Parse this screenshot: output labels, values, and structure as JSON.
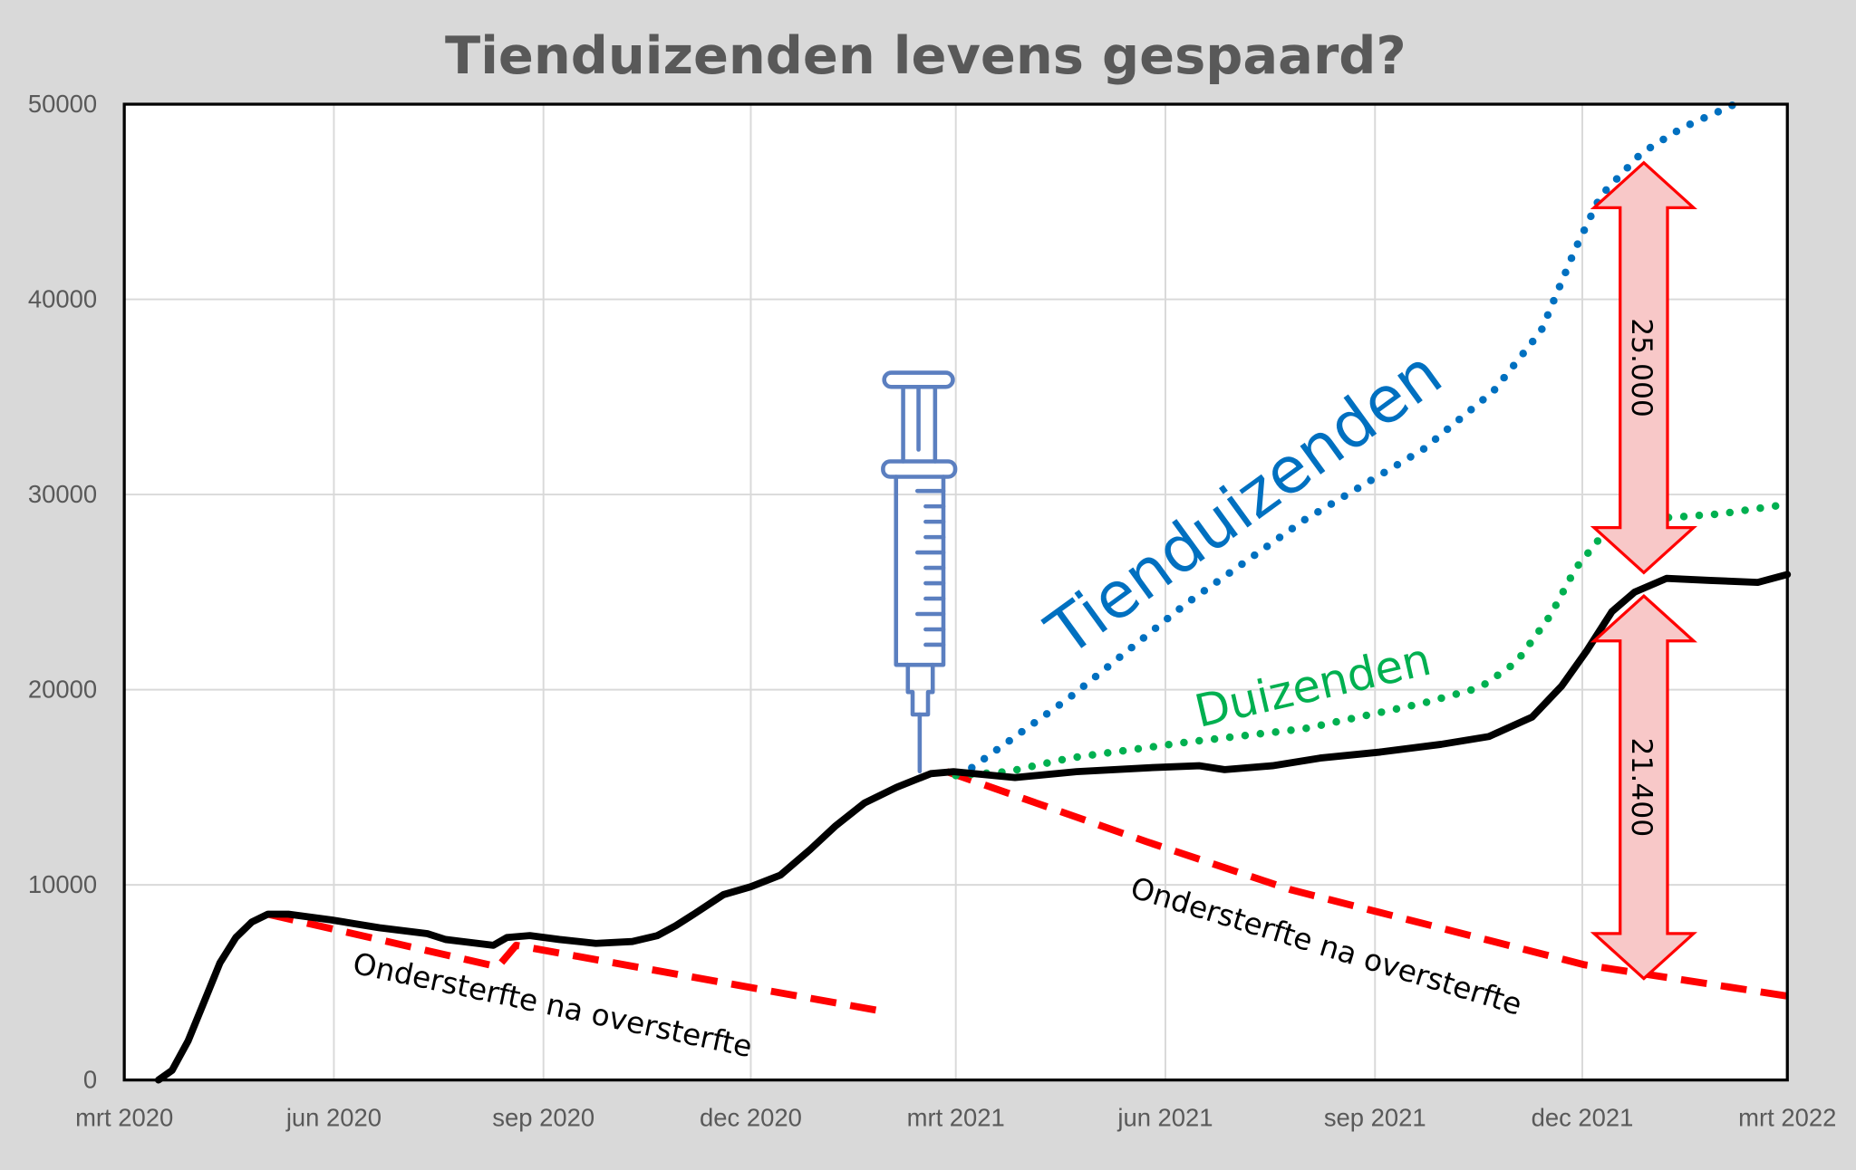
{
  "chart_data": {
    "type": "line",
    "title": "Tienduizenden levens gespaard?",
    "xlabel": "",
    "ylabel": "",
    "xlim": [
      "2020-03-01",
      "2022-03-01"
    ],
    "ylim": [
      0,
      50000
    ],
    "grid": true,
    "legend": "none",
    "x_ticks": [
      "mrt 2020",
      "jun 2020",
      "sep 2020",
      "dec 2020",
      "mrt 2021",
      "jun 2021",
      "sep 2021",
      "dec 2021",
      "mrt 2022"
    ],
    "x_tick_dates": [
      "2020-03-01",
      "2020-06-01",
      "2020-09-01",
      "2020-12-01",
      "2021-03-01",
      "2021-06-01",
      "2021-09-01",
      "2021-12-01",
      "2022-03-01"
    ],
    "y_ticks": [
      "0",
      "10000",
      "20000",
      "30000",
      "40000",
      "50000"
    ],
    "y_tick_values": [
      0,
      10000,
      20000,
      30000,
      40000,
      50000
    ],
    "series": [
      {
        "style": "solid",
        "color": "#000000",
        "points": [
          [
            "2020-03-16",
            0
          ],
          [
            "2020-03-22",
            500
          ],
          [
            "2020-03-29",
            2000
          ],
          [
            "2020-04-05",
            4000
          ],
          [
            "2020-04-12",
            6000
          ],
          [
            "2020-04-19",
            7300
          ],
          [
            "2020-04-26",
            8100
          ],
          [
            "2020-05-03",
            8500
          ],
          [
            "2020-05-12",
            8500
          ],
          [
            "2020-05-31",
            8200
          ],
          [
            "2020-06-21",
            7800
          ],
          [
            "2020-07-12",
            7500
          ],
          [
            "2020-07-20",
            7200
          ],
          [
            "2020-08-10",
            6900
          ],
          [
            "2020-08-16",
            7300
          ],
          [
            "2020-08-26",
            7400
          ],
          [
            "2020-09-08",
            7200
          ],
          [
            "2020-09-24",
            7000
          ],
          [
            "2020-10-10",
            7100
          ],
          [
            "2020-10-21",
            7400
          ],
          [
            "2020-10-29",
            7900
          ],
          [
            "2020-11-06",
            8500
          ],
          [
            "2020-11-19",
            9500
          ],
          [
            "2020-12-01",
            9900
          ],
          [
            "2020-12-14",
            10500
          ],
          [
            "2020-12-27",
            11800
          ],
          [
            "2021-01-07",
            13000
          ],
          [
            "2021-01-20",
            14200
          ],
          [
            "2021-02-03",
            15000
          ],
          [
            "2021-02-18",
            15700
          ],
          [
            "2021-02-28",
            15800
          ],
          [
            "2021-03-27",
            15500
          ],
          [
            "2021-04-23",
            15800
          ],
          [
            "2021-05-25",
            16000
          ],
          [
            "2021-06-16",
            16100
          ],
          [
            "2021-06-27",
            15900
          ],
          [
            "2021-07-18",
            16100
          ],
          [
            "2021-08-08",
            16500
          ],
          [
            "2021-09-03",
            16800
          ],
          [
            "2021-09-30",
            17200
          ],
          [
            "2021-10-21",
            17600
          ],
          [
            "2021-11-09",
            18600
          ],
          [
            "2021-11-22",
            20200
          ],
          [
            "2021-12-03",
            22000
          ],
          [
            "2021-12-14",
            24000
          ],
          [
            "2021-12-24",
            25000
          ],
          [
            "2022-01-07",
            25700
          ],
          [
            "2022-01-26",
            25600
          ],
          [
            "2022-02-16",
            25500
          ],
          [
            "2022-03-01",
            25900
          ]
        ]
      },
      {
        "style": "dashed",
        "color": "#ff0000",
        "points": [
          [
            "2020-05-03",
            8500
          ],
          [
            "2020-08-12",
            5800
          ],
          [
            "2020-08-20",
            6900
          ],
          [
            "2021-01-29",
            3500
          ]
        ]
      },
      {
        "style": "dashed",
        "color": "#ff0000",
        "points": [
          [
            "2021-02-25",
            15800
          ],
          [
            "2021-05-24",
            12200
          ],
          [
            "2021-07-26",
            9750
          ],
          [
            "2021-09-26",
            7900
          ],
          [
            "2021-12-02",
            5900
          ],
          [
            "2022-03-01",
            4300
          ]
        ]
      },
      {
        "style": "dotted",
        "color": "#0070c0",
        "points": [
          [
            "2021-03-08",
            16000
          ],
          [
            "2021-04-20",
            19600
          ],
          [
            "2021-06-10",
            24400
          ],
          [
            "2021-08-01",
            28700
          ],
          [
            "2021-09-22",
            32300
          ],
          [
            "2021-10-23",
            35300
          ],
          [
            "2021-11-13",
            38400
          ],
          [
            "2021-11-28",
            42600
          ],
          [
            "2021-12-09",
            45300
          ],
          [
            "2021-12-27",
            47500
          ],
          [
            "2022-01-14",
            48800
          ],
          [
            "2022-02-06",
            50000
          ]
        ]
      },
      {
        "style": "dotted",
        "color": "#00b050",
        "points": [
          [
            "2021-03-01",
            15600
          ],
          [
            "2021-03-24",
            15800
          ],
          [
            "2021-04-20",
            16500
          ],
          [
            "2021-06-10",
            17300
          ],
          [
            "2021-08-01",
            18000
          ],
          [
            "2021-09-22",
            19300
          ],
          [
            "2021-10-17",
            20100
          ],
          [
            "2021-11-02",
            21400
          ],
          [
            "2021-11-17",
            23800
          ],
          [
            "2021-11-28",
            26200
          ],
          [
            "2021-12-09",
            27800
          ],
          [
            "2021-12-24",
            28700
          ],
          [
            "2022-01-30",
            29000
          ],
          [
            "2022-03-01",
            29500
          ]
        ]
      }
    ],
    "annotations": {
      "tienduizenden": {
        "text": "Tienduizenden",
        "color": "#0070c0"
      },
      "duizenden": {
        "text": "Duizenden",
        "color": "#00b050"
      },
      "ondersterfte_1": {
        "text": "Ondersterfte na oversterfte"
      },
      "ondersterfte_2": {
        "text": "Ondersterfte na oversterfte"
      },
      "arrow_upper": {
        "label": "25.000",
        "from": 47000,
        "to": 26000,
        "date": "2021-12-28"
      },
      "arrow_lower": {
        "label": "21.400",
        "from": 24800,
        "to": 5200,
        "date": "2021-12-28"
      },
      "syringe": {
        "icon": "syringe-icon",
        "color": "#5b7fc0",
        "date": "2021-02-25"
      }
    }
  }
}
